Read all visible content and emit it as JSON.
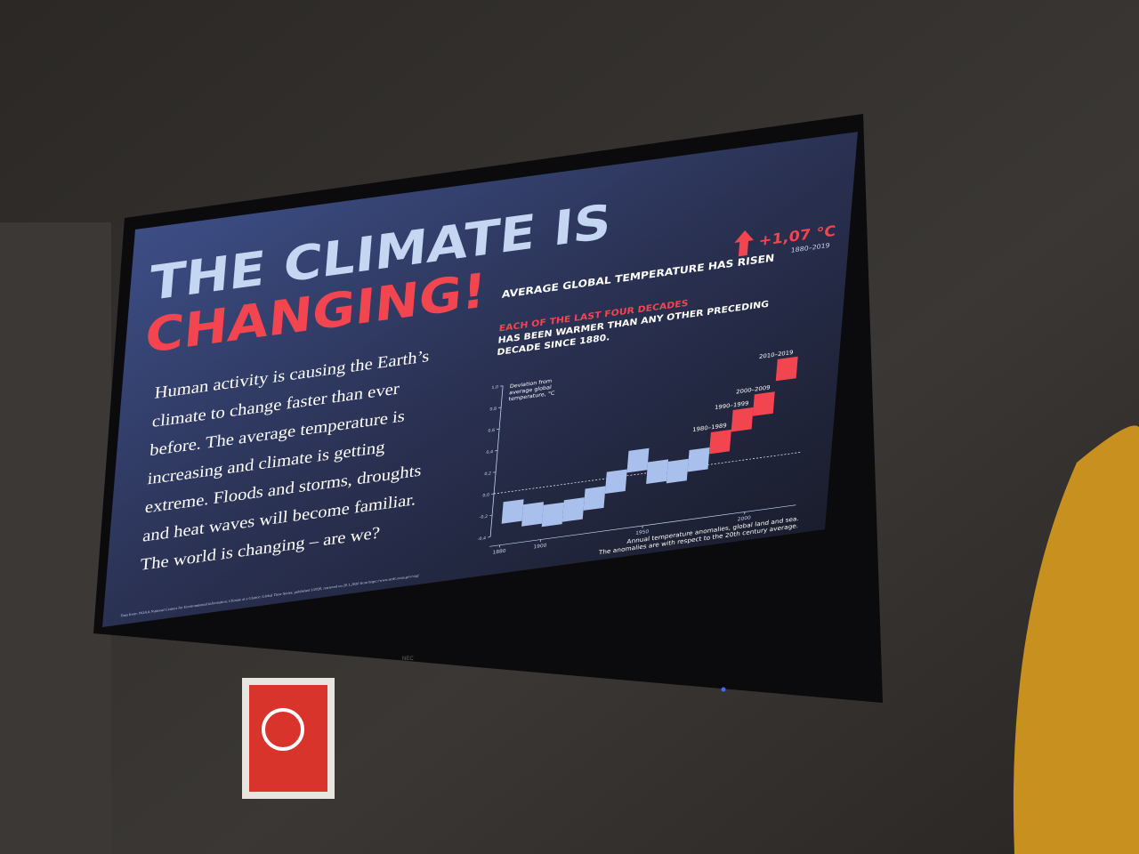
{
  "scene": {
    "title_line1": "THE CLIMATE IS",
    "title_line2": "CHANGING!",
    "body": [
      "Human activity is causing the Earth’s",
      "climate to change faster than ever",
      "before. The average temperature is",
      "increasing and climate is getting",
      "extreme. Floods and storms, droughts",
      "and heat waves will become familiar.",
      "The world is changing – are we?"
    ],
    "headline": "AVERAGE GLOBAL TEMPERATURE HAS RISEN",
    "rise": "+1,07 °C",
    "rise_period": "1880–2019",
    "decades_highlight": "EACH OF THE LAST FOUR DECADES",
    "decades_text": [
      "HAS BEEN WARMER THAN ANY OTHER PRECEDING",
      "DECADE SINCE 1880."
    ],
    "source": "Data from: NOAA National Centers for Environmental information, Climate at a Glance: Global Time Series, published 1/2020, retrieved on 20.1.2020 from https://www.ncdc.noaa.gov/cag/",
    "brand": "NEC"
  },
  "chart_data": {
    "type": "decade-blocks",
    "ylabel": [
      "Deviation from",
      "average global",
      "temperature, °C"
    ],
    "caption": [
      "Annual temperature anomalies, global land and sea.",
      "The anomalies are with respect to the 20th century average."
    ],
    "x": [
      1880,
      1890,
      1900,
      1910,
      1920,
      1930,
      1940,
      1950,
      1960,
      1970,
      1980,
      1990,
      2000,
      2010
    ],
    "values": [
      -0.19,
      -0.24,
      -0.27,
      -0.25,
      -0.17,
      -0.04,
      0.13,
      0.0,
      -0.02,
      0.06,
      0.2,
      0.38,
      0.5,
      0.8
    ],
    "colors": [
      "#a9c0ec",
      "#a9c0ec",
      "#a9c0ec",
      "#a9c0ec",
      "#a9c0ec",
      "#a9c0ec",
      "#a9c0ec",
      "#a9c0ec",
      "#a9c0ec",
      "#a9c0ec",
      "#f2454f",
      "#f2454f",
      "#f2454f",
      "#f2454f"
    ],
    "decade_labels": [
      null,
      null,
      null,
      null,
      null,
      null,
      null,
      null,
      null,
      null,
      "1980–1989",
      "1990–1999",
      "2000–2009",
      "2010–2019"
    ],
    "xlim": [
      1875,
      2025
    ],
    "xticks": [
      1880,
      1900,
      1950,
      2000
    ],
    "ylim": [
      -0.4,
      1.0
    ],
    "yticks": [
      {
        "value": -0.4,
        "label": "-0,4"
      },
      {
        "value": -0.2,
        "label": "-0,2"
      },
      {
        "value": 0,
        "label": "0,0"
      },
      {
        "value": 0.2,
        "label": "0,2"
      },
      {
        "value": 0.4,
        "label": "0,4"
      },
      {
        "value": 0.6,
        "label": "0,6"
      },
      {
        "value": 0.8,
        "label": "0,8"
      },
      {
        "value": 1.0,
        "label": "1,0"
      }
    ]
  }
}
